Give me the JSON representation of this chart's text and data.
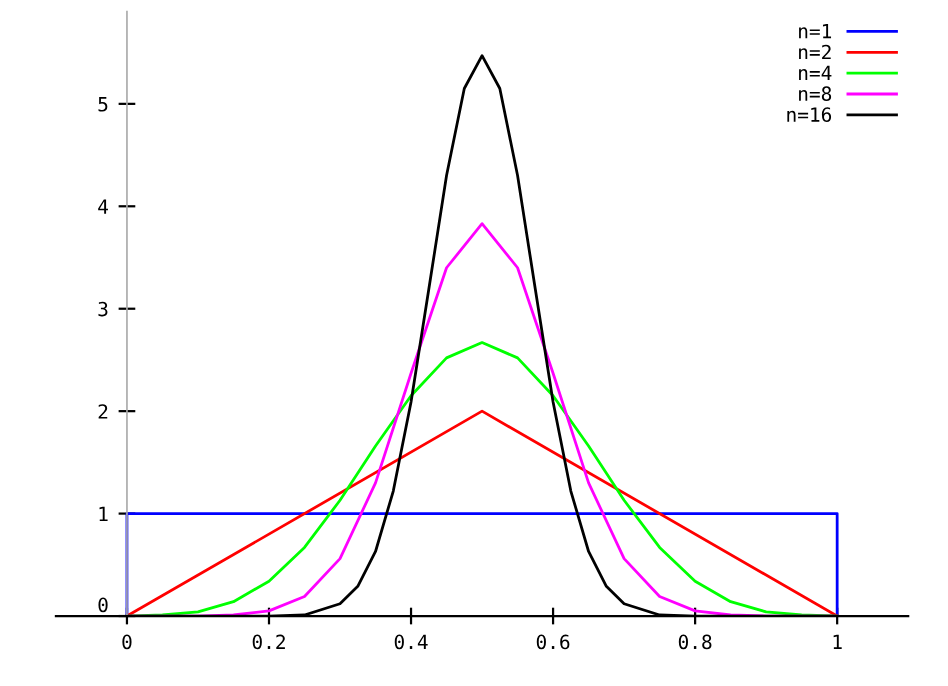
{
  "chart_data": {
    "type": "line",
    "xlim": [
      -0.1,
      1.1
    ],
    "ylim": [
      0,
      5.9
    ],
    "xticks": [
      0,
      0.2,
      0.4,
      0.6,
      0.8,
      1
    ],
    "yticks": [
      0,
      1,
      2,
      3,
      4,
      5
    ],
    "grid": false,
    "legend": "top right",
    "marker": "none",
    "line_style": "solid",
    "series": [
      {
        "name": "n=1",
        "color": "#0000ff",
        "x": [
          0,
          0,
          1,
          1
        ],
        "values": [
          0,
          1,
          1,
          0
        ]
      },
      {
        "name": "n=2",
        "color": "#ff0000",
        "x": [
          0,
          0.5,
          1
        ],
        "values": [
          0,
          2,
          0
        ]
      },
      {
        "name": "n=4",
        "color": "#00ff00",
        "x": [
          0,
          0.05,
          0.1,
          0.15,
          0.2,
          0.25,
          0.3,
          0.35,
          0.4,
          0.45,
          0.5,
          0.55,
          0.6,
          0.65,
          0.7,
          0.75,
          0.8,
          0.85,
          0.9,
          0.95,
          1
        ],
        "values": [
          0,
          0.01,
          0.04,
          0.14,
          0.34,
          0.67,
          1.13,
          1.66,
          2.15,
          2.52,
          2.67,
          2.52,
          2.15,
          1.66,
          1.13,
          0.67,
          0.34,
          0.14,
          0.04,
          0.01,
          0
        ]
      },
      {
        "name": "n=8",
        "color": "#ff00ff",
        "x": [
          0,
          0.1,
          0.15,
          0.2,
          0.25,
          0.3,
          0.35,
          0.4,
          0.45,
          0.5,
          0.55,
          0.6,
          0.65,
          0.7,
          0.75,
          0.8,
          0.85,
          0.9,
          1
        ],
        "values": [
          0,
          0,
          0.01,
          0.05,
          0.19,
          0.56,
          1.3,
          2.37,
          3.4,
          3.83,
          3.4,
          2.37,
          1.3,
          0.56,
          0.19,
          0.05,
          0.01,
          0,
          0
        ]
      },
      {
        "name": "n=16",
        "color": "#000000",
        "x": [
          0,
          0.2,
          0.25,
          0.3,
          0.325,
          0.35,
          0.375,
          0.4,
          0.425,
          0.45,
          0.475,
          0.5,
          0.525,
          0.55,
          0.575,
          0.6,
          0.625,
          0.65,
          0.675,
          0.7,
          0.75,
          0.8,
          1
        ],
        "values": [
          0,
          0,
          0.01,
          0.12,
          0.29,
          0.63,
          1.22,
          2.09,
          3.19,
          4.3,
          5.15,
          5.47,
          5.15,
          4.3,
          3.19,
          2.09,
          1.22,
          0.63,
          0.29,
          0.12,
          0.01,
          0,
          0
        ]
      }
    ]
  }
}
